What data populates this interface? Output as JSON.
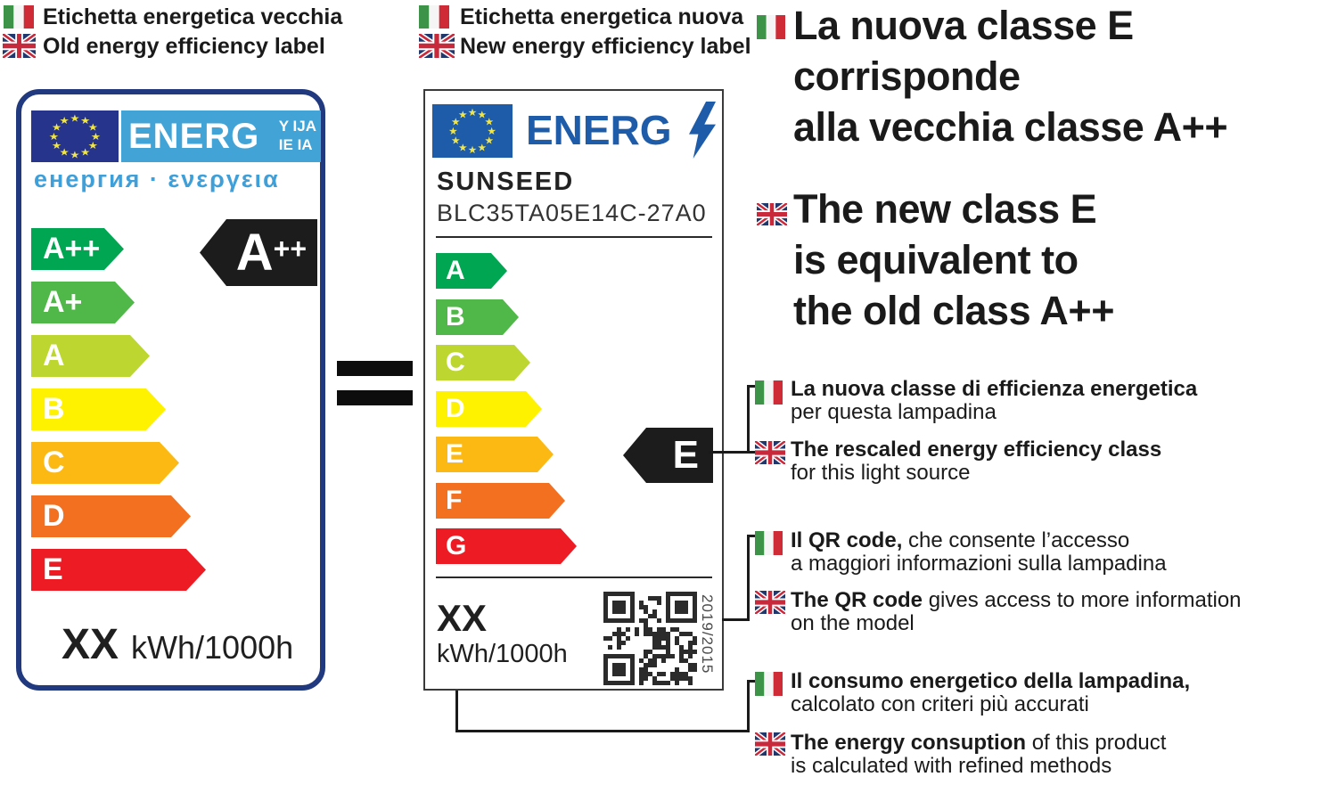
{
  "headers": {
    "old": {
      "it": "Etichetta energetica vecchia",
      "en": "Old energy efficiency label"
    },
    "new": {
      "it": "Etichetta energetica nuova",
      "en": "New energy efficiency label"
    }
  },
  "old_label": {
    "energ": "ENERG",
    "energ_suffix1": "Y IJA",
    "energ_suffix2": "IE IA",
    "subtitle": "енергия · ενεργεια",
    "classes": [
      {
        "label": "A++",
        "color": "#00A651"
      },
      {
        "label": "A+",
        "color": "#50B848"
      },
      {
        "label": "A",
        "color": "#BED630"
      },
      {
        "label": "B",
        "color": "#FFF200"
      },
      {
        "label": "C",
        "color": "#FDB913"
      },
      {
        "label": "D",
        "color": "#F37021"
      },
      {
        "label": "E",
        "color": "#ED1C24"
      }
    ],
    "rating_base": "A",
    "rating_sup": "++",
    "consumption_value": "XX",
    "consumption_unit": "kWh/1000h"
  },
  "comparison": {
    "symbol": "="
  },
  "new_label": {
    "energ": "ENERG",
    "brand": "SUNSEED",
    "model": "BLC35TA05E14C-27A0",
    "classes": [
      {
        "label": "A",
        "color": "#00A651"
      },
      {
        "label": "B",
        "color": "#50B848"
      },
      {
        "label": "C",
        "color": "#BED630"
      },
      {
        "label": "D",
        "color": "#FFF200"
      },
      {
        "label": "E",
        "color": "#FDB913"
      },
      {
        "label": "F",
        "color": "#F37021"
      },
      {
        "label": "G",
        "color": "#ED1C24"
      }
    ],
    "rating": "E",
    "consumption_value": "XX",
    "consumption_unit": "kWh/1000h",
    "regulation": "2019/2015"
  },
  "explanations": {
    "main": {
      "it_lines": [
        "La nuova classe E",
        "corrisponde",
        "alla vecchia classe A++"
      ],
      "en_lines": [
        "The new class E",
        "is equivalent to",
        "the old class A++"
      ]
    },
    "class": {
      "it_bold": "La nuova classe di efficienza energetica",
      "it_line2": "per questa lampadina",
      "en_bold": "The rescaled energy efficiency class",
      "en_line2": "for this light source"
    },
    "qr": {
      "it_bold": "Il QR code,",
      "it_rest": " che consente l’accesso",
      "it_line2": "a maggiori informazioni sulla lampadina",
      "en_bold": "The QR code",
      "en_rest": " gives access to more information",
      "en_line2": "on the model"
    },
    "consumption": {
      "it_bold": "Il consumo energetico della lampadina,",
      "it_line2": "calcolato con criteri più accurati",
      "en_bold": "The energy consuption",
      "en_rest": " of this product",
      "en_line2": "is calculated with refined methods"
    }
  },
  "colors": {
    "navy_border": "#213A7F",
    "eu_blue_old": "#27348B",
    "eu_blue_new": "#1E5CA9",
    "light_blue": "#41A3D6",
    "subtitle_blue": "#3F9FD8",
    "energ_blue": "#1E5CA9",
    "star_yellow": "#F0E64C",
    "black_arrow": "#1C1C1C"
  }
}
